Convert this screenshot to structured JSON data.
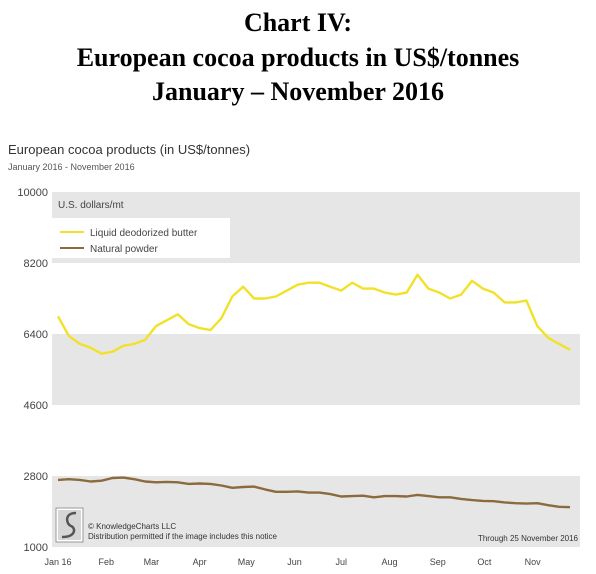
{
  "header": {
    "line1": "Chart IV:",
    "line2": "European cocoa products in US$/tonnes",
    "line3": "January – November 2016"
  },
  "chart_data": {
    "type": "line",
    "title": "European cocoa products (in US$/tonnes)",
    "subtitle": "January 2016 - November 2016",
    "ylabel": "U.S. dollars/mt",
    "ylim": [
      1000,
      10000
    ],
    "yticks": [
      1000,
      2800,
      4600,
      6400,
      8200,
      10000
    ],
    "x_tick_labels": [
      "Jan 16",
      "Feb",
      "Mar",
      "Apr",
      "May",
      "Jun",
      "Jul",
      "Aug",
      "Sep",
      "Oct",
      "Nov"
    ],
    "grid": "alternating horizontal bands",
    "legend_position": "top-left",
    "colors": {
      "band": "#e6e6e6",
      "butter": "#f2e12a",
      "powder": "#8b6a3e",
      "axis_text": "#444444"
    },
    "series": [
      {
        "name": "Liquid deodorized butter",
        "x": [
          "2016-01-01",
          "2016-01-08",
          "2016-01-15",
          "2016-01-22",
          "2016-01-29",
          "2016-02-05",
          "2016-02-12",
          "2016-02-19",
          "2016-02-26",
          "2016-03-04",
          "2016-03-11",
          "2016-03-18",
          "2016-03-25",
          "2016-04-01",
          "2016-04-08",
          "2016-04-15",
          "2016-04-22",
          "2016-04-29",
          "2016-05-06",
          "2016-05-13",
          "2016-05-20",
          "2016-05-27",
          "2016-06-03",
          "2016-06-10",
          "2016-06-17",
          "2016-06-24",
          "2016-07-01",
          "2016-07-08",
          "2016-07-15",
          "2016-07-22",
          "2016-07-29",
          "2016-08-05",
          "2016-08-12",
          "2016-08-19",
          "2016-08-26",
          "2016-09-02",
          "2016-09-09",
          "2016-09-16",
          "2016-09-23",
          "2016-09-30",
          "2016-10-07",
          "2016-10-14",
          "2016-10-21",
          "2016-10-28",
          "2016-11-04",
          "2016-11-11",
          "2016-11-18",
          "2016-11-25"
        ],
        "values": [
          6850,
          6350,
          6150,
          6050,
          5900,
          5950,
          6100,
          6150,
          6250,
          6600,
          6750,
          6900,
          6650,
          6550,
          6500,
          6800,
          7350,
          7600,
          7300,
          7300,
          7350,
          7500,
          7650,
          7700,
          7700,
          7600,
          7500,
          7700,
          7550,
          7550,
          7450,
          7400,
          7450,
          7900,
          7550,
          7450,
          7300,
          7400,
          7750,
          7550,
          7450,
          7200,
          7200,
          7250,
          6600,
          6300,
          6150,
          6000
        ]
      },
      {
        "name": "Natural powder",
        "x": [
          "2016-01-01",
          "2016-01-08",
          "2016-01-15",
          "2016-01-22",
          "2016-01-29",
          "2016-02-05",
          "2016-02-12",
          "2016-02-19",
          "2016-02-26",
          "2016-03-04",
          "2016-03-11",
          "2016-03-18",
          "2016-03-25",
          "2016-04-01",
          "2016-04-08",
          "2016-04-15",
          "2016-04-22",
          "2016-04-29",
          "2016-05-06",
          "2016-05-13",
          "2016-05-20",
          "2016-05-27",
          "2016-06-03",
          "2016-06-10",
          "2016-06-17",
          "2016-06-24",
          "2016-07-01",
          "2016-07-08",
          "2016-07-15",
          "2016-07-22",
          "2016-07-29",
          "2016-08-05",
          "2016-08-12",
          "2016-08-19",
          "2016-08-26",
          "2016-09-02",
          "2016-09-09",
          "2016-09-16",
          "2016-09-23",
          "2016-09-30",
          "2016-10-07",
          "2016-10-14",
          "2016-10-21",
          "2016-10-28",
          "2016-11-04",
          "2016-11-11",
          "2016-11-18",
          "2016-11-25"
        ],
        "values": [
          2700,
          2720,
          2700,
          2660,
          2680,
          2750,
          2760,
          2720,
          2660,
          2640,
          2650,
          2640,
          2600,
          2610,
          2600,
          2560,
          2500,
          2520,
          2530,
          2460,
          2400,
          2400,
          2410,
          2380,
          2380,
          2340,
          2280,
          2290,
          2300,
          2260,
          2290,
          2290,
          2280,
          2320,
          2290,
          2260,
          2260,
          2220,
          2190,
          2170,
          2160,
          2130,
          2110,
          2100,
          2110,
          2060,
          2020,
          2010
        ]
      }
    ],
    "footer_left_line1": "© KnowledgeCharts LLC",
    "footer_left_line2": "Distribution permitted if the image includes this notice",
    "footer_right": "Through 25 November 2016"
  }
}
